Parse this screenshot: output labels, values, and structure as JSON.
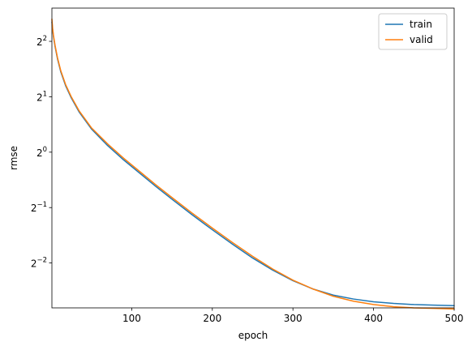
{
  "chart_data": {
    "type": "line",
    "xlabel": "epoch",
    "ylabel": "rmse",
    "xlim": [
      1,
      500
    ],
    "ylim_log2": [
      -2.81,
      2.6
    ],
    "y_scale": "log2",
    "x_ticks": [
      100,
      200,
      300,
      400,
      500
    ],
    "y_ticks": [
      {
        "base": "2",
        "exp": "2"
      },
      {
        "base": "2",
        "exp": "1"
      },
      {
        "base": "2",
        "exp": "0"
      },
      {
        "base": "2",
        "exp": "−1"
      },
      {
        "base": "2",
        "exp": "−2"
      }
    ],
    "y_tick_exponents": [
      2,
      1,
      0,
      -1,
      -2
    ],
    "grid": false,
    "legend_position": "upper-right",
    "series": [
      {
        "name": "train",
        "color": "#1f77b4",
        "x": [
          1,
          2,
          3,
          5,
          8,
          12,
          18,
          25,
          35,
          50,
          70,
          90,
          110,
          130,
          150,
          175,
          200,
          225,
          250,
          275,
          300,
          325,
          350,
          375,
          400,
          425,
          450,
          475,
          500
        ],
        "log2_y": [
          2.35,
          2.2,
          2.08,
          1.9,
          1.68,
          1.45,
          1.2,
          0.98,
          0.72,
          0.42,
          0.12,
          -0.14,
          -0.38,
          -0.62,
          -0.85,
          -1.13,
          -1.4,
          -1.66,
          -1.91,
          -2.13,
          -2.32,
          -2.47,
          -2.58,
          -2.65,
          -2.7,
          -2.73,
          -2.75,
          -2.76,
          -2.77
        ]
      },
      {
        "name": "valid",
        "color": "#ff7f0e",
        "x": [
          1,
          2,
          3,
          5,
          8,
          12,
          18,
          25,
          35,
          50,
          70,
          90,
          110,
          130,
          150,
          175,
          200,
          225,
          250,
          275,
          300,
          325,
          350,
          375,
          400,
          425,
          450,
          475,
          500
        ],
        "log2_y": [
          2.4,
          2.22,
          2.1,
          1.92,
          1.7,
          1.47,
          1.22,
          1.0,
          0.74,
          0.44,
          0.15,
          -0.11,
          -0.35,
          -0.59,
          -0.82,
          -1.1,
          -1.37,
          -1.63,
          -1.88,
          -2.11,
          -2.31,
          -2.47,
          -2.6,
          -2.69,
          -2.75,
          -2.79,
          -2.81,
          -2.82,
          -2.83
        ]
      }
    ]
  }
}
